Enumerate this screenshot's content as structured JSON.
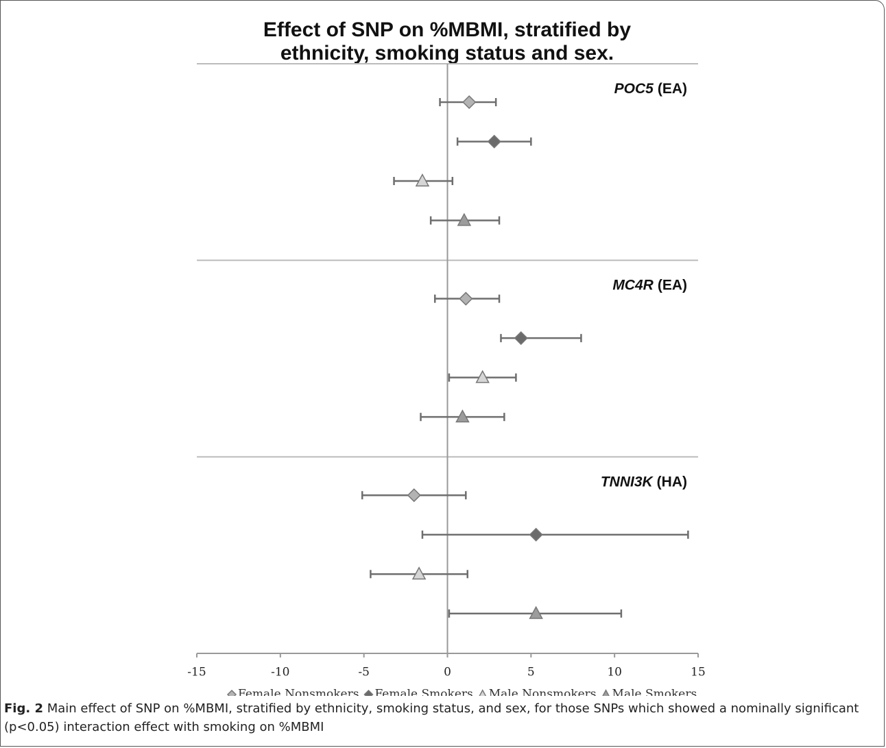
{
  "chart_data": {
    "type": "forest",
    "title": [
      "Effect of SNP on %MBMI, stratified by",
      "ethnicity, smoking status and sex."
    ],
    "categories": [
      "POC5",
      "MC4R",
      "TNNI3K"
    ],
    "category_suffixes": [
      "(EA)",
      "(EA)",
      "(HA)"
    ],
    "xlim": [
      -15,
      15
    ],
    "xticks": [
      -15,
      -10,
      -5,
      0,
      5,
      10,
      15
    ],
    "series": [
      {
        "name": "Female Nonsmokers",
        "color": "#b3b3b3",
        "marker": "diamond",
        "values": [
          1.3,
          1.1,
          -2.0
        ],
        "lower": [
          -0.45,
          -0.75,
          -5.1
        ],
        "upper": [
          2.9,
          3.1,
          1.1
        ]
      },
      {
        "name": "Female Smokers",
        "color": "#6b6b6b",
        "marker": "diamond",
        "values": [
          2.8,
          4.4,
          5.3
        ],
        "lower": [
          0.6,
          3.2,
          -1.5
        ],
        "upper": [
          5.0,
          8.0,
          14.4
        ]
      },
      {
        "name": "Male Nonsmokers",
        "color": "#d6d6d6",
        "marker": "triangle",
        "values": [
          -1.5,
          2.1,
          -1.7
        ],
        "lower": [
          -3.2,
          0.1,
          -4.6
        ],
        "upper": [
          0.3,
          4.1,
          1.2
        ]
      },
      {
        "name": "Male Smokers",
        "color": "#9c9c9c",
        "marker": "triangle",
        "values": [
          1.0,
          0.9,
          5.3
        ],
        "lower": [
          -1.0,
          -1.6,
          0.1
        ],
        "upper": [
          3.1,
          3.4,
          10.4
        ]
      }
    ]
  },
  "caption": {
    "label": "Fig. 2",
    "text": "Main effect of SNP on %MBMI, stratified by ethnicity, smoking status, and sex, for those SNPs which showed a nominally significant (p<0.05) interaction effect with smoking on %MBMI"
  }
}
